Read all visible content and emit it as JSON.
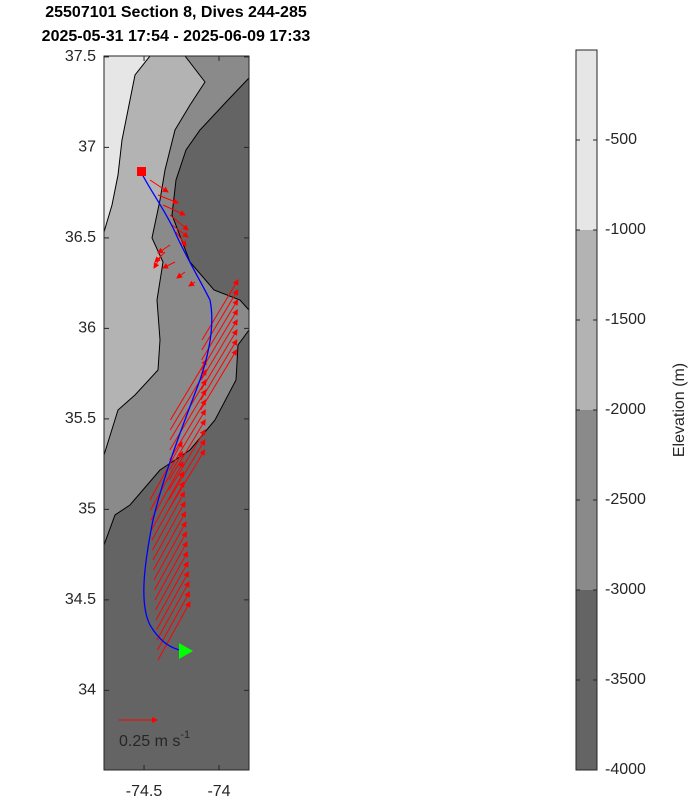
{
  "chart_data": {
    "type": "map",
    "title": "25507101 Section 8, Dives 244-285",
    "subtitle": "2025-05-31 17:54 - 2025-06-09 17:33",
    "xlim": [
      -74.767,
      -73.8
    ],
    "ylim": [
      33.56,
      37.505
    ],
    "xticks": [
      -74.5,
      -74
    ],
    "yticks": [
      34,
      34.5,
      35,
      35.5,
      36,
      36.5,
      37,
      37.5
    ],
    "colorbar": {
      "label": "Elevation (m)",
      "lim": [
        -4000,
        0
      ],
      "ticks": [
        -4000,
        -3500,
        -3000,
        -2500,
        -2000,
        -1500,
        -1000,
        -500
      ],
      "levels": [
        -4000,
        -3000,
        -2000,
        -1000,
        0
      ],
      "colors": [
        "#646464",
        "#8a8a8a",
        "#b3b3b3",
        "#e6e6e6"
      ]
    },
    "track_color": "#0000ff",
    "vector_color": "#ff0000",
    "scale_label": "0.25 m s",
    "scale_exponent": "-1"
  }
}
